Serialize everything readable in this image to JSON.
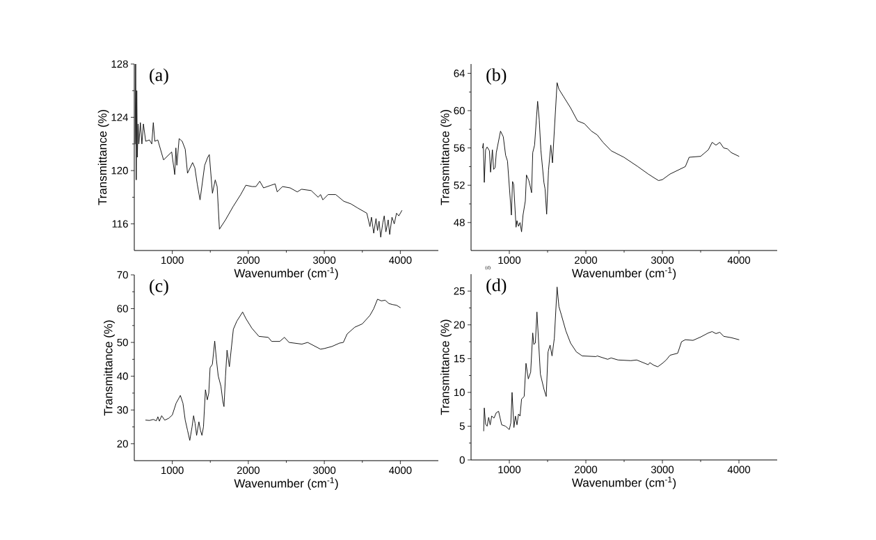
{
  "chart_data": [
    {
      "type": "line",
      "title": "(a)",
      "xlabel": "Wavenumber (cm$^{-1}$)",
      "ylabel": "Transmittance (%)",
      "xlim": [
        500,
        4500
      ],
      "xticks": [
        1000,
        2000,
        3000,
        4000
      ],
      "ylim": [
        114,
        128
      ],
      "yticks": [
        116,
        120,
        124,
        128
      ],
      "series": [
        {
          "color": "#000000",
          "x": [
            510,
            518,
            526,
            533,
            540,
            550,
            560,
            580,
            600,
            620,
            650,
            700,
            730,
            750,
            770,
            809,
            885,
            992,
            1032,
            1047,
            1060,
            1090,
            1130,
            1170,
            1200,
            1267,
            1297,
            1328,
            1365,
            1426,
            1466,
            1487,
            1528,
            1565,
            1590,
            1620,
            1700,
            1800,
            1900,
            1968,
            2050,
            2100,
            2151,
            2200,
            2300,
            2353,
            2380,
            2450,
            2550,
            2644,
            2700,
            2827,
            2919,
            2950,
            2981,
            3050,
            3150,
            3255,
            3350,
            3436,
            3559,
            3600,
            3620,
            3650,
            3680,
            3700,
            3720,
            3742,
            3770,
            3788,
            3810,
            3840,
            3860,
            3890,
            3920,
            3950,
            3980,
            4020
          ],
          "values": [
            122,
            128,
            119.3,
            126,
            121,
            123.5,
            122,
            123.6,
            122,
            123.5,
            122.2,
            122.3,
            122,
            123.6,
            122.2,
            122.3,
            120.8,
            121.4,
            119.7,
            121.7,
            120.4,
            122.4,
            122.2,
            121.6,
            119.8,
            120.6,
            120.2,
            119,
            117.8,
            120.4,
            121,
            121.2,
            118.3,
            119.3,
            118.8,
            115.6,
            116.3,
            117.3,
            118.2,
            118.9,
            118.8,
            118.8,
            119.2,
            118.7,
            118.9,
            119,
            118.4,
            118.8,
            118.7,
            118.4,
            118.6,
            118.5,
            118,
            118.2,
            117.8,
            118.2,
            118.2,
            117.7,
            117.5,
            117.2,
            116.8,
            115.8,
            116.5,
            115.3,
            116.4,
            115.5,
            116.2,
            115,
            116.1,
            116.6,
            115.4,
            116.3,
            115.2,
            116.5,
            116,
            116.8,
            116.6,
            117
          ]
        }
      ]
    },
    {
      "type": "line",
      "title": "(b)",
      "xlabel": "Wavenumber (cm$^{-1}$)",
      "ylabel": "Transmittance (%)",
      "annotations": [
        "(d)"
      ],
      "xlim": [
        500,
        4500
      ],
      "xticks": [
        1000,
        2000,
        3000,
        4000
      ],
      "ylim": [
        45,
        65
      ],
      "yticks": [
        48,
        52,
        56,
        60,
        64
      ],
      "series": [
        {
          "color": "#000000",
          "x": [
            650,
            660,
            673,
            690,
            710,
            740,
            755,
            779,
            795,
            815,
            830,
            885,
            921,
            952,
            976,
            1027,
            1042,
            1057,
            1088,
            1100,
            1120,
            1140,
            1160,
            1179,
            1209,
            1224,
            1255,
            1270,
            1291,
            1306,
            1330,
            1370,
            1391,
            1412,
            1452,
            1467,
            1488,
            1512,
            1542,
            1564,
            1624,
            1648,
            1709,
            1800,
            1891,
            1982,
            2073,
            2148,
            2224,
            2330,
            2497,
            2679,
            2815,
            2891,
            2950,
            3000,
            3100,
            3200,
            3300,
            3350,
            3500,
            3600,
            3650,
            3700,
            3750,
            3800,
            3850,
            3900,
            4000
          ],
          "values": [
            56,
            56.5,
            52.3,
            55.8,
            56.1,
            55.7,
            53.4,
            55.8,
            53.7,
            53.9,
            55.5,
            57.8,
            57.2,
            55.2,
            54.6,
            48.8,
            52.4,
            52.1,
            47.5,
            48.2,
            47.6,
            48,
            47,
            48.8,
            50.3,
            53.1,
            52.5,
            52,
            51.2,
            55.5,
            56.3,
            61,
            59,
            55.8,
            52.3,
            51.6,
            48.9,
            53.6,
            56.3,
            54.4,
            63,
            62.3,
            61.5,
            60.3,
            58.9,
            58.6,
            57.8,
            57.4,
            56.6,
            55.7,
            55,
            54,
            53.2,
            52.8,
            52.5,
            52.6,
            53.2,
            53.6,
            54,
            55,
            55.1,
            55.8,
            56.6,
            56.3,
            56.6,
            56,
            55.9,
            55.5,
            55.1
          ]
        }
      ]
    },
    {
      "type": "line",
      "title": "(c)",
      "xlabel": "Wavenumber (cm$^{-1}$)",
      "ylabel": "Transmittance (%)",
      "xlim": [
        500,
        4500
      ],
      "xticks": [
        1000,
        2000,
        3000,
        4000
      ],
      "ylim": [
        15,
        70
      ],
      "yticks": [
        20,
        30,
        40,
        50,
        60,
        70
      ],
      "series": [
        {
          "color": "#000000",
          "x": [
            650,
            700,
            750,
            790,
            810,
            830,
            860,
            900,
            950,
            1000,
            1050,
            1106,
            1140,
            1170,
            1200,
            1230,
            1260,
            1280,
            1300,
            1320,
            1350,
            1370,
            1390,
            1410,
            1436,
            1460,
            1480,
            1497,
            1527,
            1558,
            1580,
            1604,
            1640,
            1665,
            1680,
            1700,
            1720,
            1751,
            1803,
            1849,
            1925,
            1970,
            2047,
            2139,
            2262,
            2307,
            2414,
            2475,
            2536,
            2705,
            2781,
            2950,
            3000,
            3100,
            3200,
            3250,
            3300,
            3400,
            3500,
            3600,
            3650,
            3700,
            3750,
            3800,
            3850,
            3900,
            3950,
            4000
          ],
          "values": [
            27,
            26.9,
            27.2,
            26.8,
            28,
            26.7,
            28.3,
            27,
            27.5,
            28.5,
            32,
            34.3,
            32,
            27,
            24,
            21,
            25,
            28.3,
            26,
            22.5,
            26.5,
            24,
            22.5,
            25,
            36,
            33,
            35,
            42.5,
            43.5,
            50.4,
            45,
            40.1,
            37,
            32.5,
            31,
            40,
            47.7,
            42.8,
            53.9,
            56.3,
            59,
            57,
            54.2,
            51.8,
            51.5,
            50.3,
            50.3,
            51.5,
            50,
            49.5,
            50,
            48,
            48.2,
            48.8,
            49.8,
            50,
            52.5,
            54.5,
            55.5,
            58,
            60,
            62.8,
            62.3,
            62.5,
            61.5,
            61.2,
            61,
            60.3
          ]
        }
      ]
    },
    {
      "type": "line",
      "title": "(d)",
      "xlabel": "Wavenumber (cm$^{-1}$)",
      "ylabel": "Transmittance (%)",
      "xlim": [
        500,
        4500
      ],
      "xticks": [
        1000,
        2000,
        3000,
        4000
      ],
      "ylim": [
        0,
        27.5
      ],
      "yticks": [
        0,
        5,
        10,
        15,
        20,
        25
      ],
      "series": [
        {
          "color": "#000000",
          "x": [
            665,
            673,
            690,
            710,
            730,
            750,
            770,
            800,
            830,
            860,
            880,
            900,
            950,
            1000,
            1020,
            1036,
            1060,
            1080,
            1100,
            1120,
            1140,
            1160,
            1194,
            1218,
            1248,
            1279,
            1306,
            1320,
            1340,
            1361,
            1406,
            1452,
            1482,
            1506,
            1533,
            1558,
            1588,
            1624,
            1648,
            1679,
            1739,
            1800,
            1876,
            1952,
            2133,
            2148,
            2285,
            2330,
            2421,
            2588,
            2664,
            2815,
            2836,
            2891,
            2940,
            3000,
            3050,
            3100,
            3200,
            3250,
            3300,
            3400,
            3500,
            3600,
            3650,
            3700,
            3750,
            3800,
            3900,
            4000
          ],
          "values": [
            4.3,
            7.7,
            5.3,
            5,
            6.3,
            5.2,
            6.5,
            6.2,
            7,
            7.2,
            6.2,
            5.2,
            5,
            4.5,
            5.5,
            10,
            4.8,
            6.5,
            5.2,
            6.8,
            6.5,
            9,
            9.4,
            14.3,
            12,
            13,
            18.8,
            17.1,
            17.3,
            21.9,
            12.7,
            10.5,
            9.4,
            16,
            17,
            15.4,
            18,
            25.6,
            22.7,
            21.5,
            19.1,
            17.3,
            16,
            15.4,
            15.3,
            15.4,
            14.9,
            15.1,
            14.8,
            14.7,
            14.8,
            14.1,
            14.4,
            14,
            13.8,
            14.3,
            14.8,
            15.5,
            15.8,
            17.5,
            17.8,
            17.7,
            18.2,
            18.8,
            19,
            18.7,
            18.9,
            18.3,
            18.1,
            17.8
          ]
        }
      ]
    }
  ]
}
